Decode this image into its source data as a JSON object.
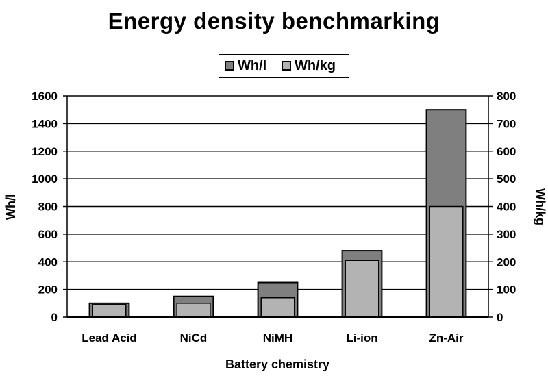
{
  "chart_data": {
    "type": "bar",
    "title": "Energy density benchmarking",
    "xlabel": "Battery chemistry",
    "ylabel": "Wh/l",
    "y2label": "Wh/kg",
    "categories": [
      "Lead Acid",
      "NiCd",
      "NiMH",
      "Li-ion",
      "Zn-Air"
    ],
    "series": [
      {
        "name": "Wh/l",
        "axis": "left",
        "values": [
          100,
          150,
          250,
          480,
          1500
        ]
      },
      {
        "name": "Wh/kg",
        "axis": "right",
        "values": [
          45,
          50,
          70,
          205,
          400
        ]
      }
    ],
    "ylim": [
      0,
      1600
    ],
    "y2lim": [
      0,
      800
    ],
    "y_ticks": [
      "0",
      "200",
      "400",
      "600",
      "800",
      "1000",
      "1200",
      "1400",
      "1600"
    ],
    "y2_ticks": [
      "0",
      "100",
      "200",
      "300",
      "400",
      "500",
      "600",
      "700",
      "800"
    ],
    "grid": true,
    "legend_position": "top-center",
    "colors": {
      "Wh/l": "#7f7f7f",
      "Wh/kg": "#b3b3b3",
      "grid": "#000000",
      "axis": "#000000"
    }
  }
}
